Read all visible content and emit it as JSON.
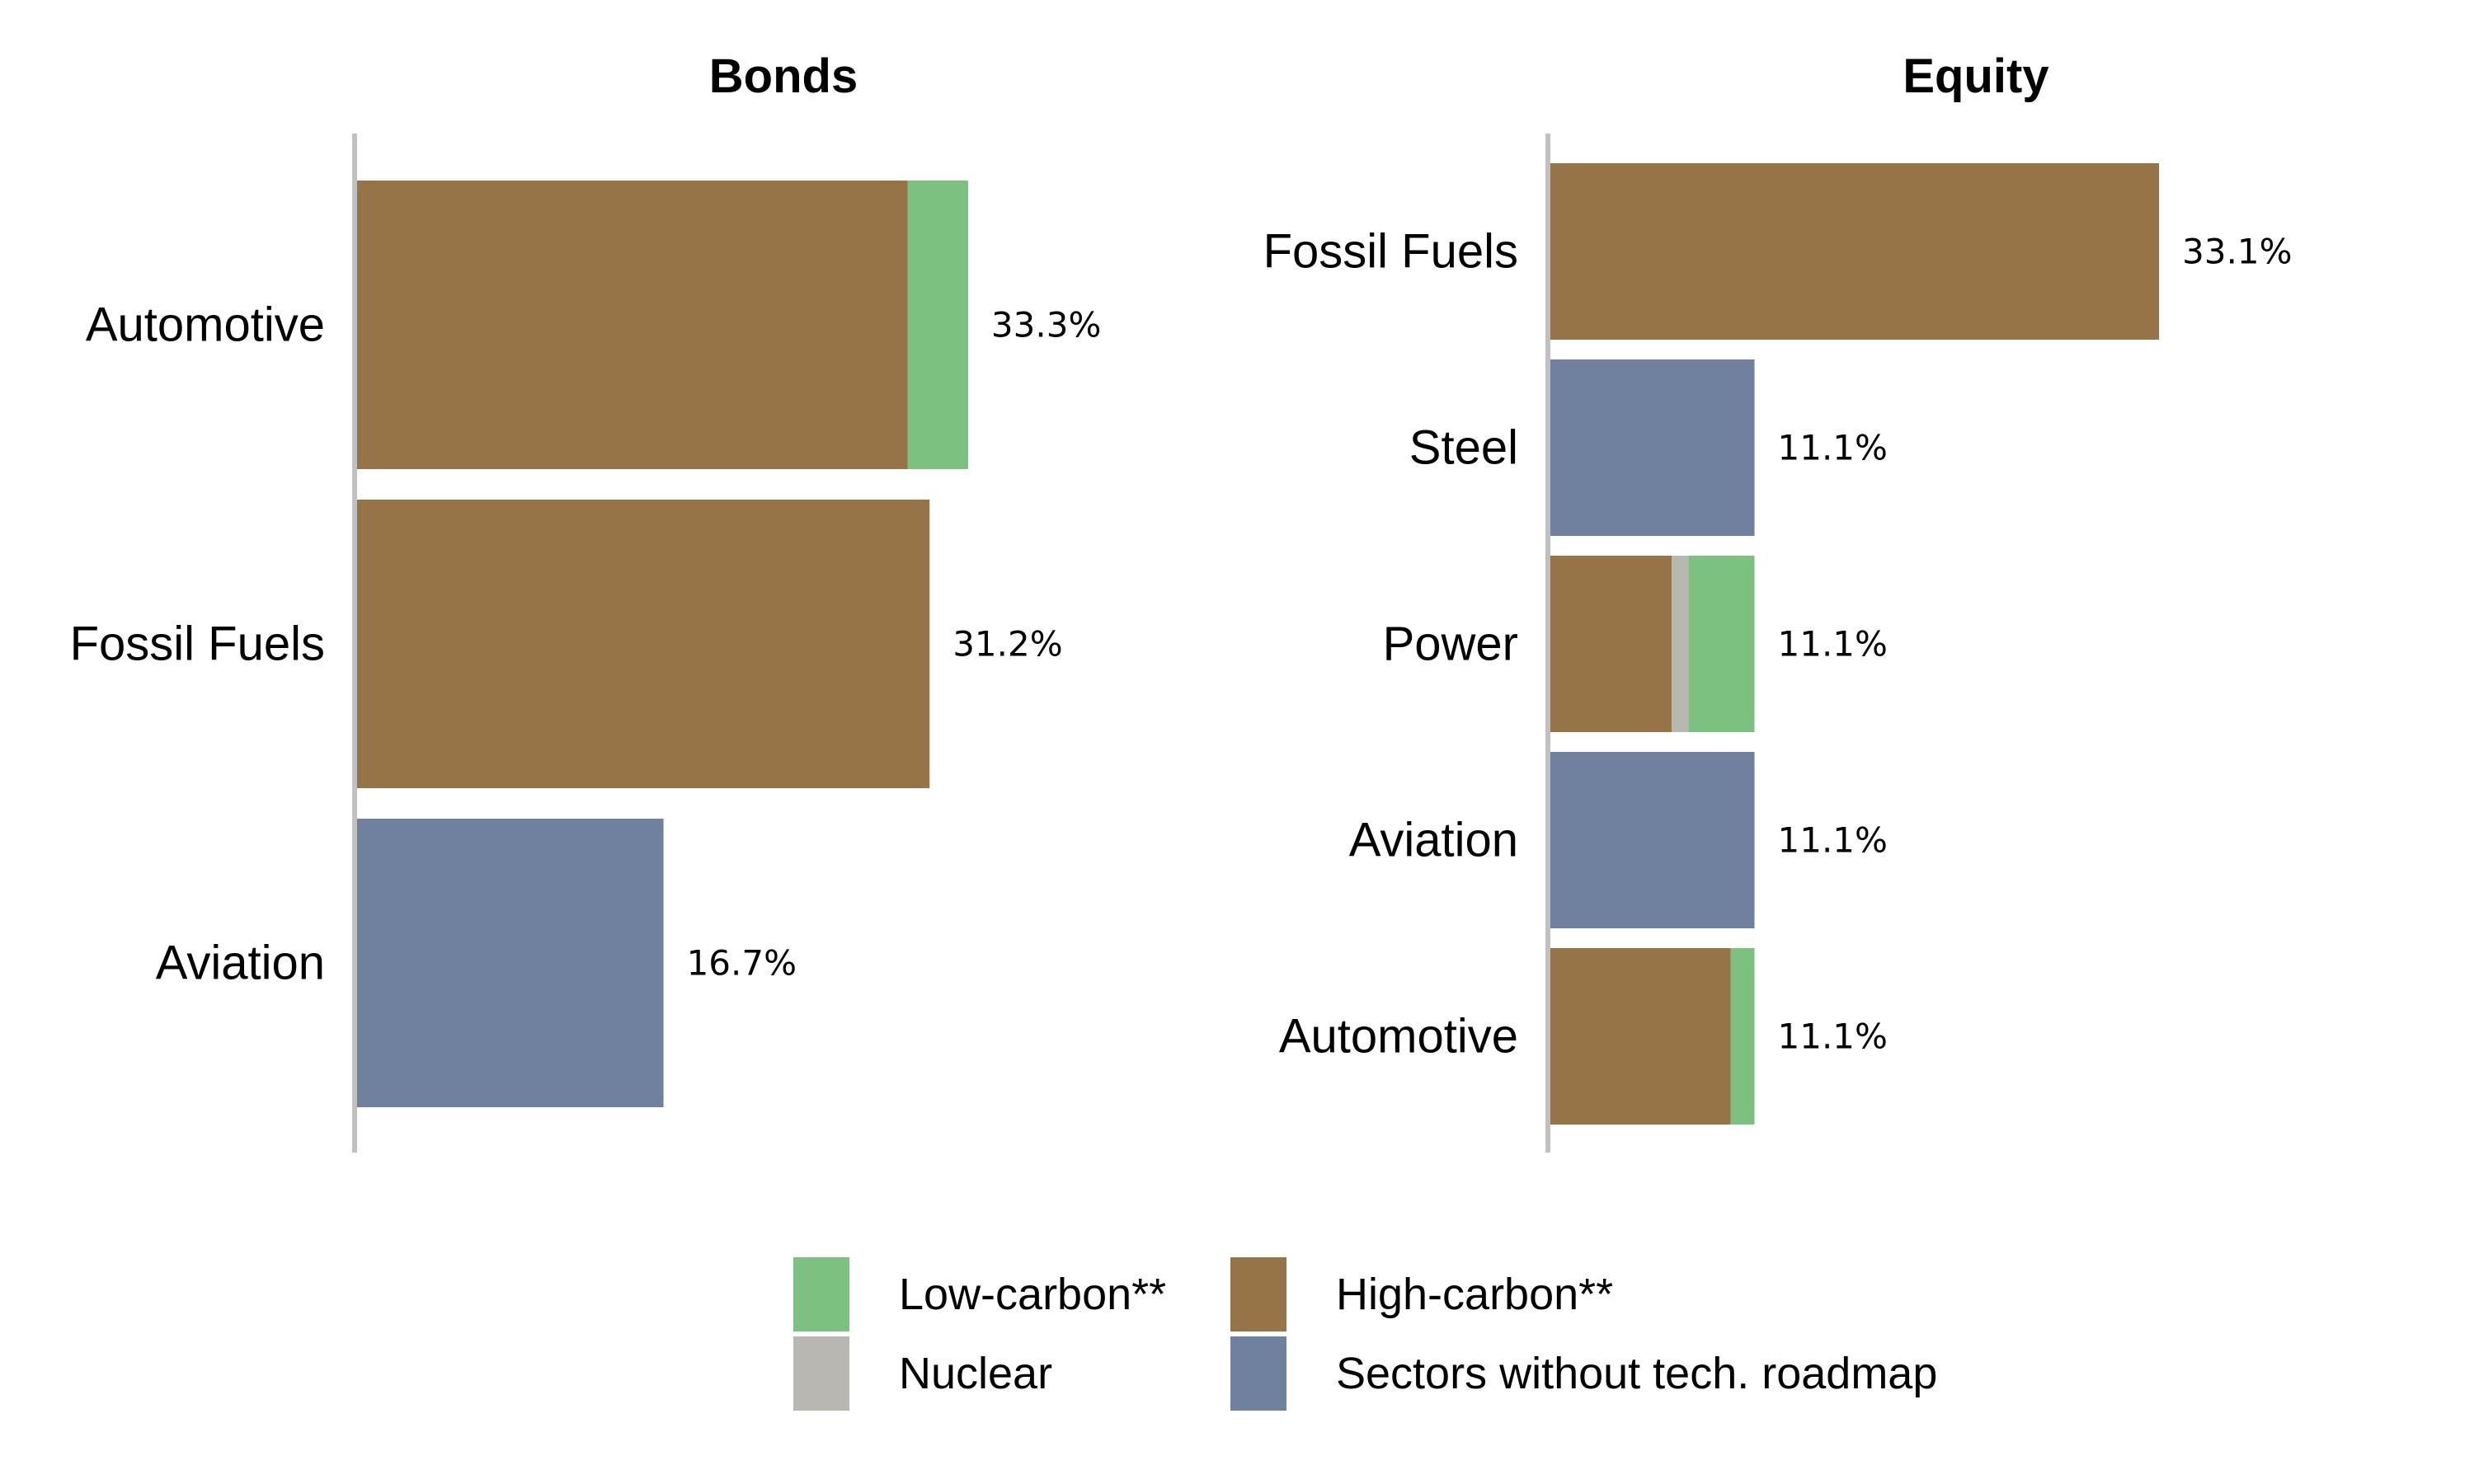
{
  "chart_data": [
    {
      "type": "bar",
      "orientation": "horizontal",
      "stacked": true,
      "title": "Bonds",
      "categories": [
        "Automotive",
        "Fossil Fuels",
        "Aviation"
      ],
      "totals": [
        33.3,
        31.2,
        16.7
      ],
      "value_labels": [
        "33.3%",
        "31.2%",
        "16.7%"
      ],
      "series": [
        {
          "name": "High-carbon**",
          "values": [
            30.0,
            31.2,
            0
          ]
        },
        {
          "name": "Nuclear",
          "values": [
            0,
            0,
            0
          ]
        },
        {
          "name": "Low-carbon**",
          "values": [
            3.3,
            0,
            0
          ]
        },
        {
          "name": "Sectors without tech. roadmap",
          "values": [
            0,
            0,
            16.7
          ]
        }
      ],
      "xlim": [
        0,
        60
      ],
      "grid": false
    },
    {
      "type": "bar",
      "orientation": "horizontal",
      "stacked": true,
      "title": "Equity",
      "categories": [
        "Fossil Fuels",
        "Steel",
        "Power",
        "Aviation",
        "Automotive"
      ],
      "totals": [
        33.1,
        11.1,
        11.1,
        11.1,
        11.1
      ],
      "value_labels": [
        "33.1%",
        "11.1%",
        "11.1%",
        "11.1%",
        "11.1%"
      ],
      "series": [
        {
          "name": "High-carbon**",
          "values": [
            33.1,
            0,
            6.6,
            0,
            9.8
          ]
        },
        {
          "name": "Nuclear",
          "values": [
            0,
            0,
            0.9,
            0,
            0
          ]
        },
        {
          "name": "Low-carbon**",
          "values": [
            0,
            0,
            3.6,
            0,
            1.3
          ]
        },
        {
          "name": "Sectors without tech. roadmap",
          "values": [
            0,
            11.1,
            0,
            11.1,
            0
          ]
        }
      ],
      "xlim": [
        0,
        60
      ],
      "grid": false
    }
  ],
  "colors": {
    "High-carbon**": "#967448",
    "Nuclear": "#b9b7b1",
    "Low-carbon**": "#7cc17f",
    "Sectors without tech. roadmap": "#6f819e",
    "axis": "#c0c0c0"
  },
  "legend": {
    "position": "bottom",
    "items": [
      "Low-carbon**",
      "Nuclear",
      "High-carbon**",
      "Sectors without tech. roadmap"
    ]
  }
}
